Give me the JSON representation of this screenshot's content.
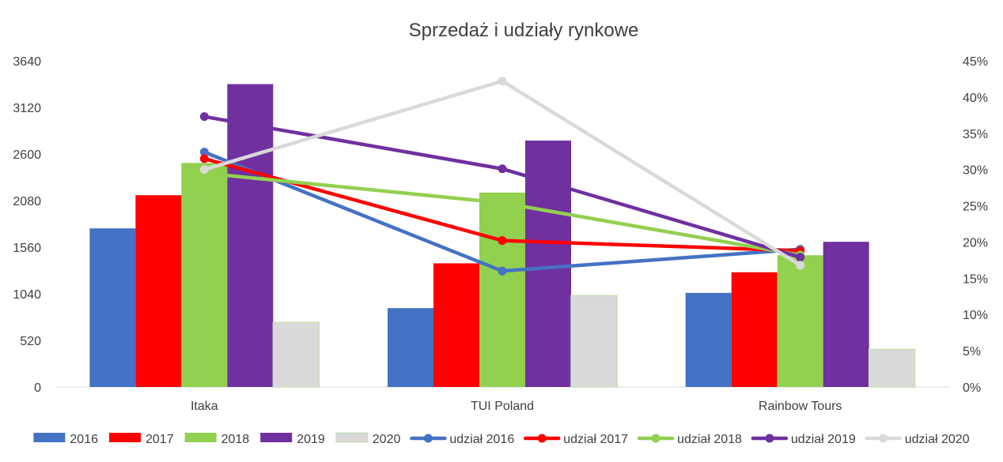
{
  "chart_data": {
    "type": "bar",
    "title": "Sprzedaż i udziały rynkowe",
    "categories": [
      "Itaka",
      "TUI Poland",
      "Rainbow Tours"
    ],
    "ylim": [
      0,
      3640
    ],
    "yticks": [
      "0",
      "520",
      "1040",
      "1560",
      "2080",
      "2600",
      "3120",
      "3640"
    ],
    "y2lim": [
      0,
      45
    ],
    "y2ticks": [
      "0%",
      "5%",
      "10%",
      "15%",
      "20%",
      "25%",
      "30%",
      "35%",
      "40%",
      "45%"
    ],
    "grid": false,
    "legend_position": "bottom",
    "bar_series": [
      {
        "name": "2016",
        "color": "#4472C4",
        "values": [
          1770,
          880,
          1050
        ]
      },
      {
        "name": "2017",
        "color": "#FF0000",
        "values": [
          2140,
          1380,
          1280
        ]
      },
      {
        "name": "2018",
        "color": "#92D050",
        "values": [
          2500,
          2170,
          1470
        ]
      },
      {
        "name": "2019",
        "color": "#7030A0",
        "values": [
          3380,
          2750,
          1620
        ]
      },
      {
        "name": "2020",
        "color": "#D9D9D9",
        "values": [
          720,
          1020,
          420
        ]
      }
    ],
    "line_series": [
      {
        "name": "udział 2016",
        "color": "#4472C4",
        "values": [
          32.4,
          16.0,
          19.0
        ]
      },
      {
        "name": "udział 2017",
        "color": "#FF0000",
        "values": [
          31.5,
          20.2,
          18.8
        ]
      },
      {
        "name": "udział 2018",
        "color": "#92D050",
        "values": [
          29.5,
          25.4,
          18.2
        ]
      },
      {
        "name": "udział 2019",
        "color": "#7030A0",
        "values": [
          37.3,
          30.1,
          17.9
        ]
      },
      {
        "name": "udział 2020",
        "color": "#D9D9D9",
        "values": [
          30.0,
          42.2,
          16.8
        ]
      }
    ]
  }
}
